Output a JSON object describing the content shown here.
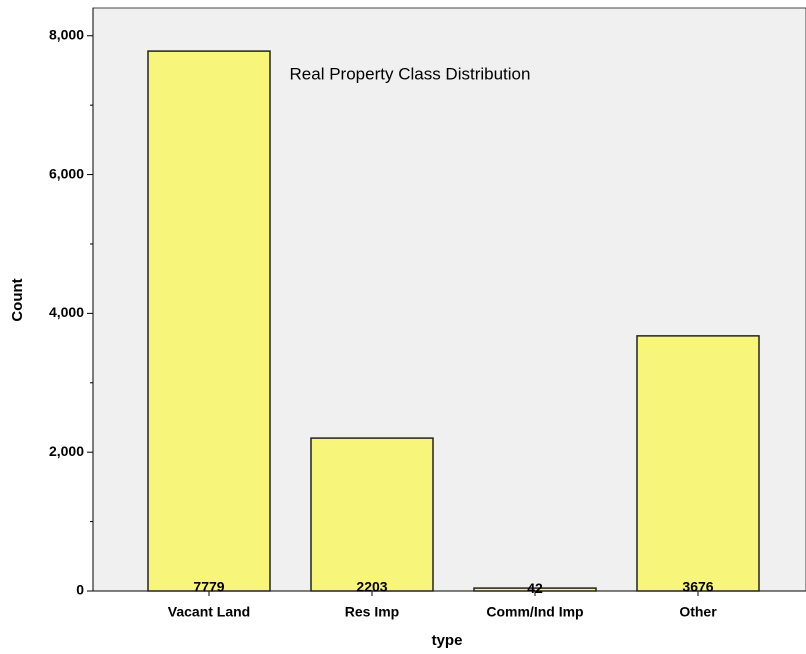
{
  "chart_data": {
    "type": "bar",
    "title": "Real Property Class Distribution",
    "x_label": "type",
    "y_label": "Count",
    "categories": [
      "Vacant Land",
      "Res Imp",
      "Comm/Ind Imp",
      "Other"
    ],
    "values": [
      7779,
      2203,
      42,
      3676
    ],
    "color": "#f7f57a",
    "ylim": [
      0,
      8400
    ],
    "yticks": [
      0,
      {
        "value": 2000,
        "label": "2,000"
      },
      {
        "value": 4000,
        "label": "4,000"
      },
      {
        "value": 6000,
        "label": "6,000"
      },
      {
        "value": 8000,
        "label": "8,000"
      }
    ],
    "minor_yticks": [
      1000,
      3000,
      5000,
      7000
    ],
    "grid": false
  }
}
